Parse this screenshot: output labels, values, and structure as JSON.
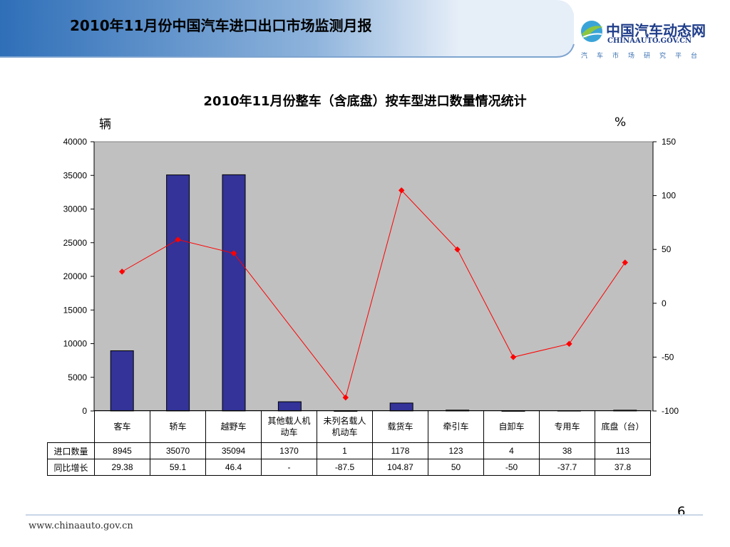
{
  "header": {
    "title": "2010年11月份中国汽车进口出口市场监测月报",
    "logo_main": "中国汽车动态网",
    "logo_url": "CHINAAUTO.GOV.CN",
    "logo_sub": "汽车市场研究平台"
  },
  "chart_data": {
    "type": "bar",
    "title": "2010年11月份整车（含底盘）按车型进口数量情况统计",
    "ylabel_left": "辆",
    "ylabel_right": "%",
    "categories": [
      "客车",
      "轿车",
      "越野车",
      "其他载人机动车",
      "未列名载人机动车",
      "载货车",
      "牵引车",
      "自卸车",
      "专用车",
      "底盘（台）"
    ],
    "ylim_left": [
      0,
      40000
    ],
    "yticks_left": [
      0,
      5000,
      10000,
      15000,
      20000,
      25000,
      30000,
      35000,
      40000
    ],
    "ylim_right": [
      -100,
      150
    ],
    "yticks_right": [
      -100,
      -50,
      0,
      50,
      100,
      150
    ],
    "series": [
      {
        "name": "进口数量",
        "type": "bar",
        "axis": "left",
        "color": "#333399",
        "values": [
          8945,
          35070,
          35094,
          1370,
          1,
          1178,
          123,
          4,
          38,
          113
        ]
      },
      {
        "name": "同比增长",
        "type": "line",
        "axis": "right",
        "color": "#ff0000",
        "values": [
          29.38,
          59.1,
          46.4,
          null,
          -87.5,
          104.87,
          50,
          -50,
          -37.7,
          37.8
        ]
      }
    ],
    "table_rows": [
      {
        "label": "进口数量",
        "cells": [
          "8945",
          "35070",
          "35094",
          "1370",
          "1",
          "1178",
          "123",
          "4",
          "38",
          "113"
        ]
      },
      {
        "label": "同比增长",
        "cells": [
          "29.38",
          "59.1",
          "46.4",
          "-",
          "-87.5",
          "104.87",
          "50",
          "-50",
          "-37.7",
          "37.8"
        ]
      }
    ],
    "plot_background": "#c0c0c0",
    "legend": "table-below"
  },
  "footer": {
    "url": "www.chinaauto.gov.cn",
    "page": "6"
  }
}
